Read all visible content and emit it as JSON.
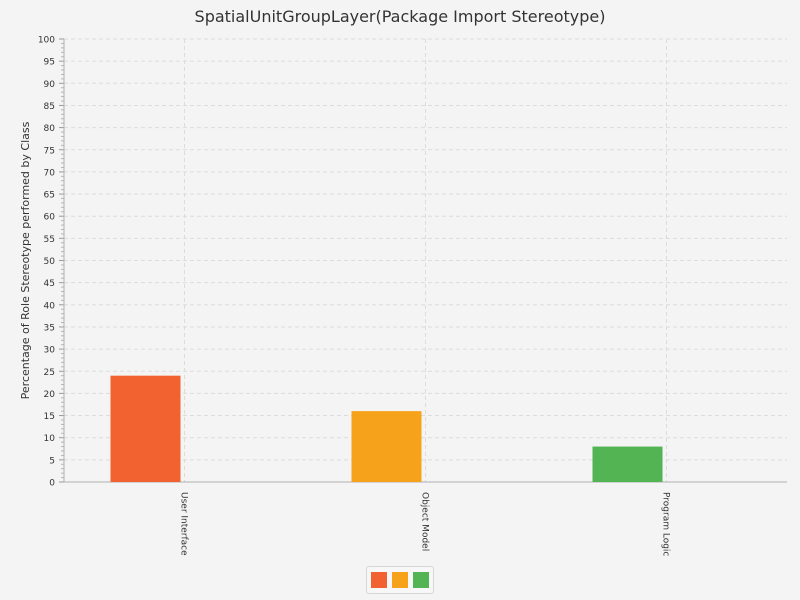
{
  "chart_data": {
    "type": "bar",
    "title": "SpatialUnitGroupLayer(Package Import Stereotype)",
    "xlabel": "",
    "ylabel": "Percentage of Role Stereotype performed by Class",
    "categories": [
      "User Interface",
      "Object Model",
      "Program Logic"
    ],
    "values": [
      24,
      16,
      8
    ],
    "colors": [
      "#f26230",
      "#f7a21b",
      "#53b454"
    ],
    "ylim": [
      0,
      100
    ],
    "y_major_step": 5,
    "y_minor_step": 1,
    "grid": true,
    "legend_position": "bottom-center",
    "legend_labels": [
      "",
      "",
      ""
    ]
  }
}
